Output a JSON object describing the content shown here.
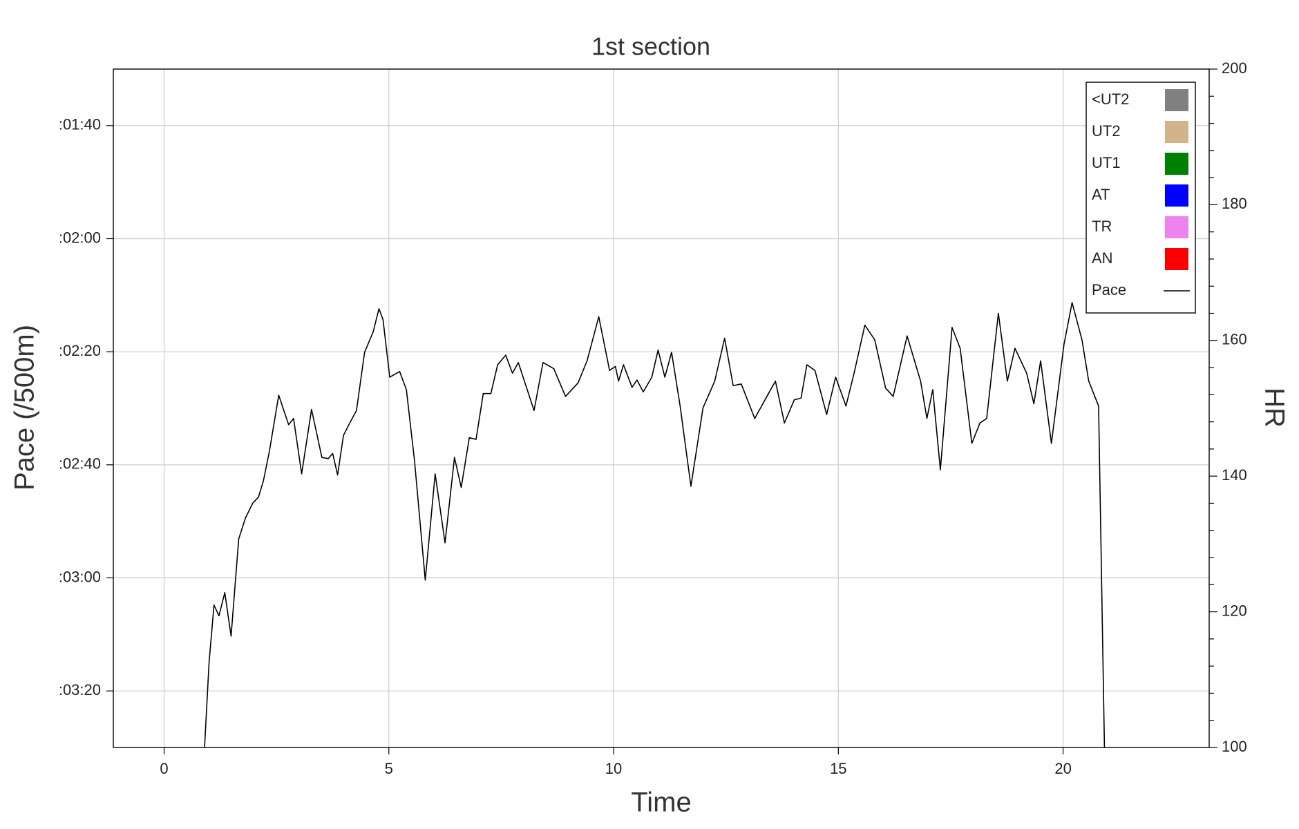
{
  "chart_data": {
    "type": "line",
    "title": "1st section",
    "x_label": "Time",
    "y_label": "Pace (/500m)",
    "y2_label": "HR",
    "xlim": [
      -1.13,
      23.25
    ],
    "xticks": [
      0,
      5,
      10,
      15,
      20
    ],
    "ylim": [
      210,
      90
    ],
    "yticks": [
      {
        "value": 100,
        "label": ":01:40"
      },
      {
        "value": 120,
        "label": ":02:00"
      },
      {
        "value": 140,
        "label": ":02:20"
      },
      {
        "value": 160,
        "label": ":02:40"
      },
      {
        "value": 180,
        "label": ":03:00"
      },
      {
        "value": 200,
        "label": ":03:20"
      }
    ],
    "y2lim": [
      100,
      200
    ],
    "y2ticks": [
      100,
      120,
      140,
      160,
      180,
      200
    ],
    "y2minorticks": [
      104,
      108,
      112,
      116,
      124,
      128,
      132,
      136,
      144,
      148,
      152,
      156,
      164,
      168,
      172,
      176,
      184,
      188,
      192,
      196
    ],
    "grid": true,
    "legend": "upper right",
    "legend_items": [
      {
        "name": "<UT2",
        "color": "#808080"
      },
      {
        "name": "UT2",
        "color": "#d2b48c"
      },
      {
        "name": "UT1",
        "color": "#008000"
      },
      {
        "name": "AT",
        "color": "#0000ff"
      },
      {
        "name": "TR",
        "color": "#ee82ee"
      },
      {
        "name": "AN",
        "color": "#ff0000"
      }
    ],
    "series": [
      {
        "name": "Pace",
        "color": "#000000",
        "x": [
          0.9,
          1.0,
          1.11,
          1.22,
          1.35,
          1.49,
          1.66,
          1.81,
          1.97,
          2.1,
          2.21,
          2.34,
          2.55,
          2.77,
          2.88,
          3.06,
          3.28,
          3.51,
          3.65,
          3.75,
          3.86,
          3.99,
          4.15,
          4.28,
          4.46,
          4.65,
          4.78,
          4.87,
          5.02,
          5.24,
          5.39,
          5.57,
          5.81,
          6.03,
          6.25,
          6.46,
          6.61,
          6.79,
          6.94,
          7.1,
          7.27,
          7.42,
          7.6,
          7.75,
          7.88,
          8.23,
          8.43,
          8.67,
          8.93,
          9.21,
          9.41,
          9.67,
          9.91,
          10.04,
          10.11,
          10.22,
          10.41,
          10.52,
          10.66,
          10.85,
          10.99,
          11.14,
          11.29,
          11.48,
          11.72,
          11.99,
          12.25,
          12.47,
          12.66,
          12.84,
          13.14,
          13.41,
          13.6,
          13.8,
          14.02,
          14.17,
          14.3,
          14.48,
          14.74,
          14.94,
          15.17,
          15.35,
          15.59,
          15.81,
          16.05,
          16.22,
          16.53,
          16.83,
          16.97,
          17.1,
          17.27,
          17.53,
          17.71,
          17.97,
          18.15,
          18.3,
          18.56,
          18.76,
          18.93,
          19.19,
          19.35,
          19.5,
          19.74,
          20.02,
          20.2,
          20.42,
          20.57,
          20.79,
          20.92
        ],
        "values": [
          210,
          195.0,
          184.8,
          186.7,
          182.6,
          190.3,
          173.1,
          169.4,
          166.8,
          165.7,
          162.8,
          157.7,
          147.7,
          152.9,
          151.8,
          161.6,
          150.2,
          158.7,
          158.9,
          158.0,
          161.8,
          154.8,
          152.3,
          150.4,
          140.1,
          136.5,
          132.4,
          134.3,
          144.5,
          143.5,
          146.7,
          159.2,
          180.4,
          161.6,
          173.8,
          158.7,
          164.0,
          155.2,
          155.5,
          147.4,
          147.4,
          142.3,
          140.6,
          143.8,
          141.9,
          150.4,
          141.9,
          143.0,
          147.9,
          145.5,
          141.6,
          133.8,
          143.3,
          142.6,
          145.2,
          142.3,
          146.3,
          145.0,
          147.1,
          144.5,
          139.7,
          144.5,
          140.1,
          149.6,
          163.8,
          149.9,
          145.2,
          137.6,
          146.0,
          145.7,
          151.8,
          147.9,
          145.2,
          152.6,
          148.5,
          148.2,
          142.3,
          143.3,
          151.1,
          144.5,
          149.6,
          143.8,
          135.3,
          137.9,
          146.4,
          147.9,
          137.2,
          145.2,
          151.8,
          146.7,
          160.9,
          135.7,
          139.4,
          156.2,
          152.6,
          151.8,
          133.2,
          145.2,
          139.4,
          143.8,
          149.2,
          141.6,
          156.2,
          138.7,
          131.3,
          137.9,
          145.2,
          149.6,
          210
        ]
      }
    ]
  }
}
